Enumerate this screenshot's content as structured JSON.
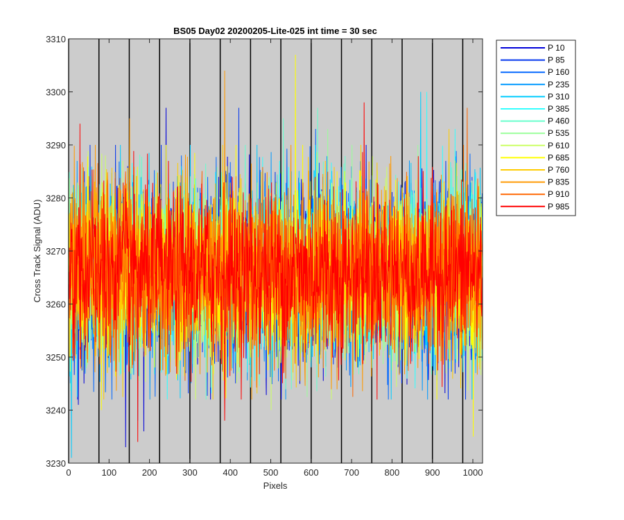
{
  "chart_data": {
    "type": "line",
    "title": "BS05 Day02 20200205-Lite-025 int time = 30 sec",
    "xlabel": "Pixels",
    "ylabel": "Cross Track Signal (ADU)",
    "xlim": [
      0,
      1024
    ],
    "ylim": [
      3230,
      3310
    ],
    "xticks": [
      0,
      100,
      200,
      300,
      400,
      500,
      600,
      700,
      800,
      900,
      1000
    ],
    "yticks": [
      3230,
      3240,
      3250,
      3260,
      3270,
      3280,
      3290,
      3300,
      3310
    ],
    "vertical_lines_x": [
      0,
      75,
      150,
      225,
      300,
      375,
      450,
      525,
      600,
      675,
      750,
      825,
      900,
      975
    ],
    "background": "#cccccc",
    "legend_position": "outside-top-right",
    "noise_mean": 3266,
    "noise_std": 8,
    "series": [
      {
        "name": "P 10",
        "color": "#0000d9",
        "extremes": [
          [
            23,
            3241
          ],
          [
            185,
            3236
          ],
          [
            240,
            3297
          ],
          [
            140,
            3233
          ]
        ]
      },
      {
        "name": "P 85",
        "color": "#0033ee",
        "extremes": [
          [
            115,
            3290
          ],
          [
            228,
            3290
          ],
          [
            420,
            3297
          ]
        ]
      },
      {
        "name": "P 160",
        "color": "#0066ff",
        "extremes": [
          [
            512,
            3283
          ],
          [
            610,
            3293
          ]
        ]
      },
      {
        "name": "P 235",
        "color": "#0099ff",
        "extremes": [
          [
            170,
            3238
          ],
          [
            830,
            3279
          ]
        ]
      },
      {
        "name": "P 310",
        "color": "#00ccff",
        "extremes": [
          [
            6,
            3231
          ],
          [
            870,
            3300
          ]
        ]
      },
      {
        "name": "P 385",
        "color": "#33ffff",
        "extremes": [
          [
            885,
            3300
          ],
          [
            955,
            3293
          ]
        ]
      },
      {
        "name": "P 460",
        "color": "#66ffcc",
        "extremes": [
          [
            530,
            3295
          ],
          [
            615,
            3297
          ]
        ]
      },
      {
        "name": "P 535",
        "color": "#99ff99",
        "extremes": [
          [
            640,
            3293
          ],
          [
            700,
            3290
          ]
        ]
      },
      {
        "name": "P 610",
        "color": "#ccff66",
        "extremes": [
          [
            90,
            3288
          ],
          [
            500,
            3240
          ]
        ]
      },
      {
        "name": "P 685",
        "color": "#ffff00",
        "extremes": [
          [
            560,
            3307
          ],
          [
            1000,
            3235
          ],
          [
            80,
            3240
          ]
        ]
      },
      {
        "name": "P 760",
        "color": "#ffcc00",
        "extremes": [
          [
            380,
            3290
          ],
          [
            940,
            3293
          ]
        ]
      },
      {
        "name": "P 835",
        "color": "#ff9900",
        "extremes": [
          [
            385,
            3304
          ],
          [
            150,
            3295
          ]
        ]
      },
      {
        "name": "P 910",
        "color": "#ff6600",
        "extremes": [
          [
            140,
            3285
          ],
          [
            985,
            3297
          ]
        ]
      },
      {
        "name": "P 985",
        "color": "#ff0000",
        "extremes": [
          [
            27,
            3294
          ],
          [
            170,
            3234
          ],
          [
            385,
            3238
          ],
          [
            730,
            3298
          ]
        ]
      }
    ]
  }
}
